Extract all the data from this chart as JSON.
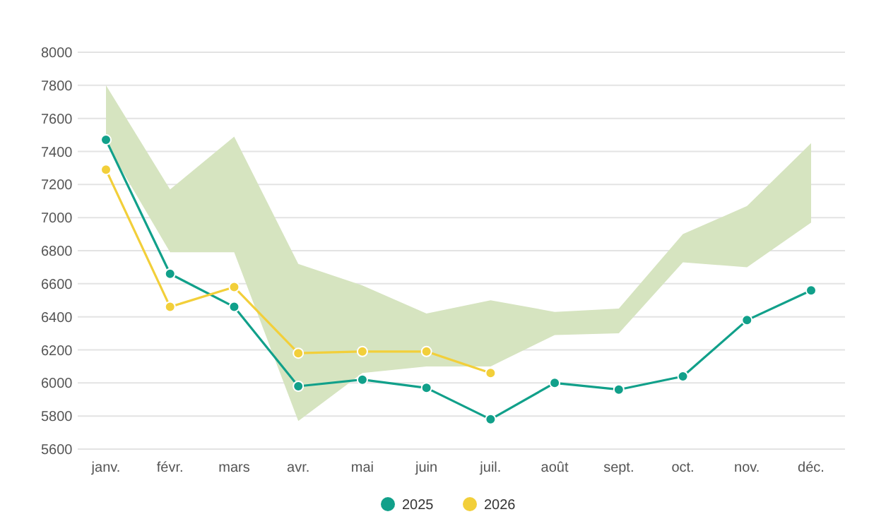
{
  "chart_data": {
    "type": "line",
    "categories": [
      "janv.",
      "févr.",
      "mars",
      "avr.",
      "mai",
      "juin",
      "juil.",
      "août",
      "sept.",
      "oct.",
      "nov.",
      "déc."
    ],
    "series": [
      {
        "type": "area",
        "color": "#d6e4c0",
        "values": [
          null,
          null,
          null,
          null,
          null,
          null,
          null,
          null,
          null,
          null,
          null,
          null
        ],
        "lower": [
          7450,
          6790,
          6790,
          5770,
          6060,
          6100,
          6100,
          6290,
          6300,
          6730,
          6700,
          6970
        ],
        "upper": [
          7800,
          7170,
          7490,
          6720,
          6590,
          6420,
          6500,
          6430,
          6450,
          6900,
          7070,
          7450
        ]
      },
      {
        "name": "2025",
        "color": "#11a08a",
        "values": [
          7470,
          6660,
          6460,
          5980,
          6020,
          5970,
          5780,
          6000,
          5960,
          6040,
          6380,
          6560
        ]
      },
      {
        "name": "2026",
        "color": "#f2cf3a",
        "values": [
          7290,
          6460,
          6580,
          6180,
          6190,
          6190,
          6060,
          null,
          null,
          null,
          null,
          null
        ]
      }
    ],
    "ylim": [
      5600,
      8000
    ],
    "yticks": [
      5600,
      5800,
      6000,
      6200,
      6400,
      6600,
      6800,
      7000,
      7200,
      7400,
      7600,
      7800,
      8000
    ],
    "grid": "y",
    "legend": "bottom",
    "marker": "circle"
  }
}
